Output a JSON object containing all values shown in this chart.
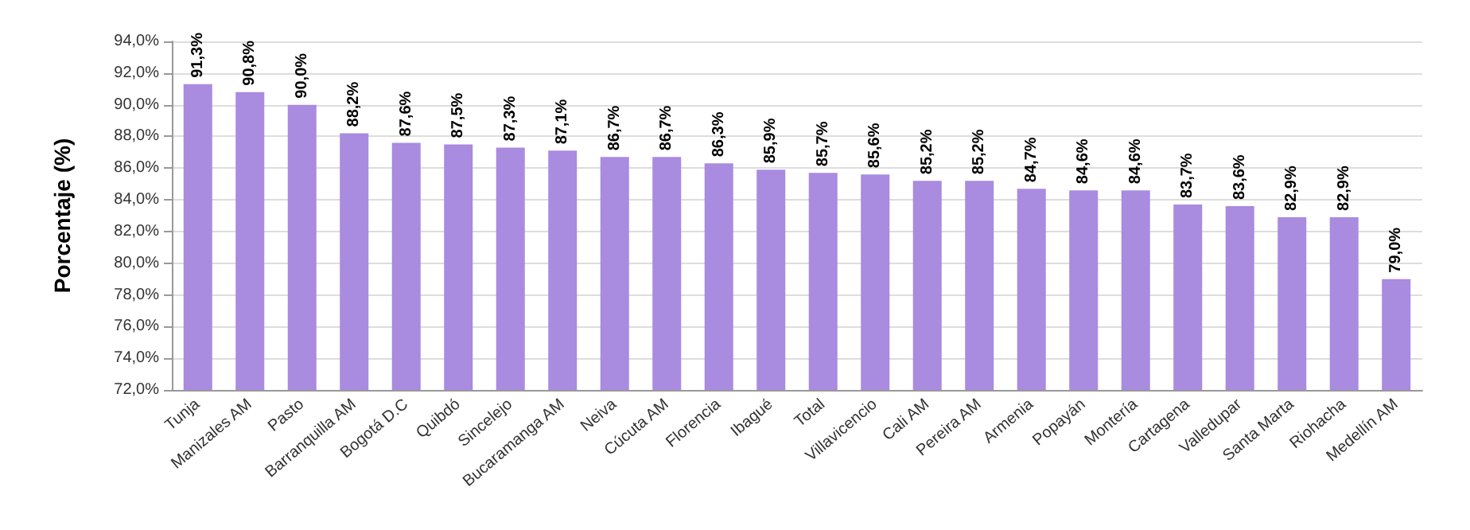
{
  "chart_data": {
    "type": "bar",
    "ylabel": "Porcentaje (%)",
    "categories": [
      "Tunja",
      "Manizales AM",
      "Pasto",
      "Barranquilla AM",
      "Bogotá D.C",
      "Quibdó",
      "Sincelejo",
      "Bucaramanga AM",
      "Neiva",
      "Cúcuta AM",
      "Florencia",
      "Ibagué",
      "Total",
      "Villavicencio",
      "Cali AM",
      "Pereira AM",
      "Armenia",
      "Popayán",
      "Montería",
      "Cartagena",
      "Valledupar",
      "Santa Marta",
      "Riohacha",
      "Medellín AM"
    ],
    "values": [
      91.3,
      90.8,
      90.0,
      88.2,
      87.6,
      87.5,
      87.3,
      87.1,
      86.7,
      86.7,
      86.3,
      85.9,
      85.7,
      85.6,
      85.2,
      85.2,
      84.7,
      84.6,
      84.6,
      83.7,
      83.6,
      82.9,
      82.9,
      79.0
    ],
    "value_labels": [
      "91,3%",
      "90,8%",
      "90,0%",
      "88,2%",
      "87,6%",
      "87,5%",
      "87,3%",
      "87,1%",
      "86,7%",
      "86,7%",
      "86,3%",
      "85,9%",
      "85,7%",
      "85,6%",
      "85,2%",
      "85,2%",
      "84,7%",
      "84,6%",
      "84,6%",
      "83,7%",
      "83,6%",
      "82,9%",
      "82,9%",
      "79,0%"
    ],
    "color": "#a98be0",
    "ylim": [
      72,
      94
    ],
    "yticks": [
      {
        "value": 72,
        "label": "72,0%"
      },
      {
        "value": 74,
        "label": "74,0%"
      },
      {
        "value": 76,
        "label": "76,0%"
      },
      {
        "value": 78,
        "label": "78,0%"
      },
      {
        "value": 80,
        "label": "80,0%"
      },
      {
        "value": 82,
        "label": "82,0%"
      },
      {
        "value": 84,
        "label": "84,0%"
      },
      {
        "value": 86,
        "label": "86,0%"
      },
      {
        "value": 88,
        "label": "88,0%"
      },
      {
        "value": 90,
        "label": "90,0%"
      },
      {
        "value": 92,
        "label": "92,0%"
      },
      {
        "value": 94,
        "label": "94,0%"
      }
    ],
    "grid": "y"
  }
}
